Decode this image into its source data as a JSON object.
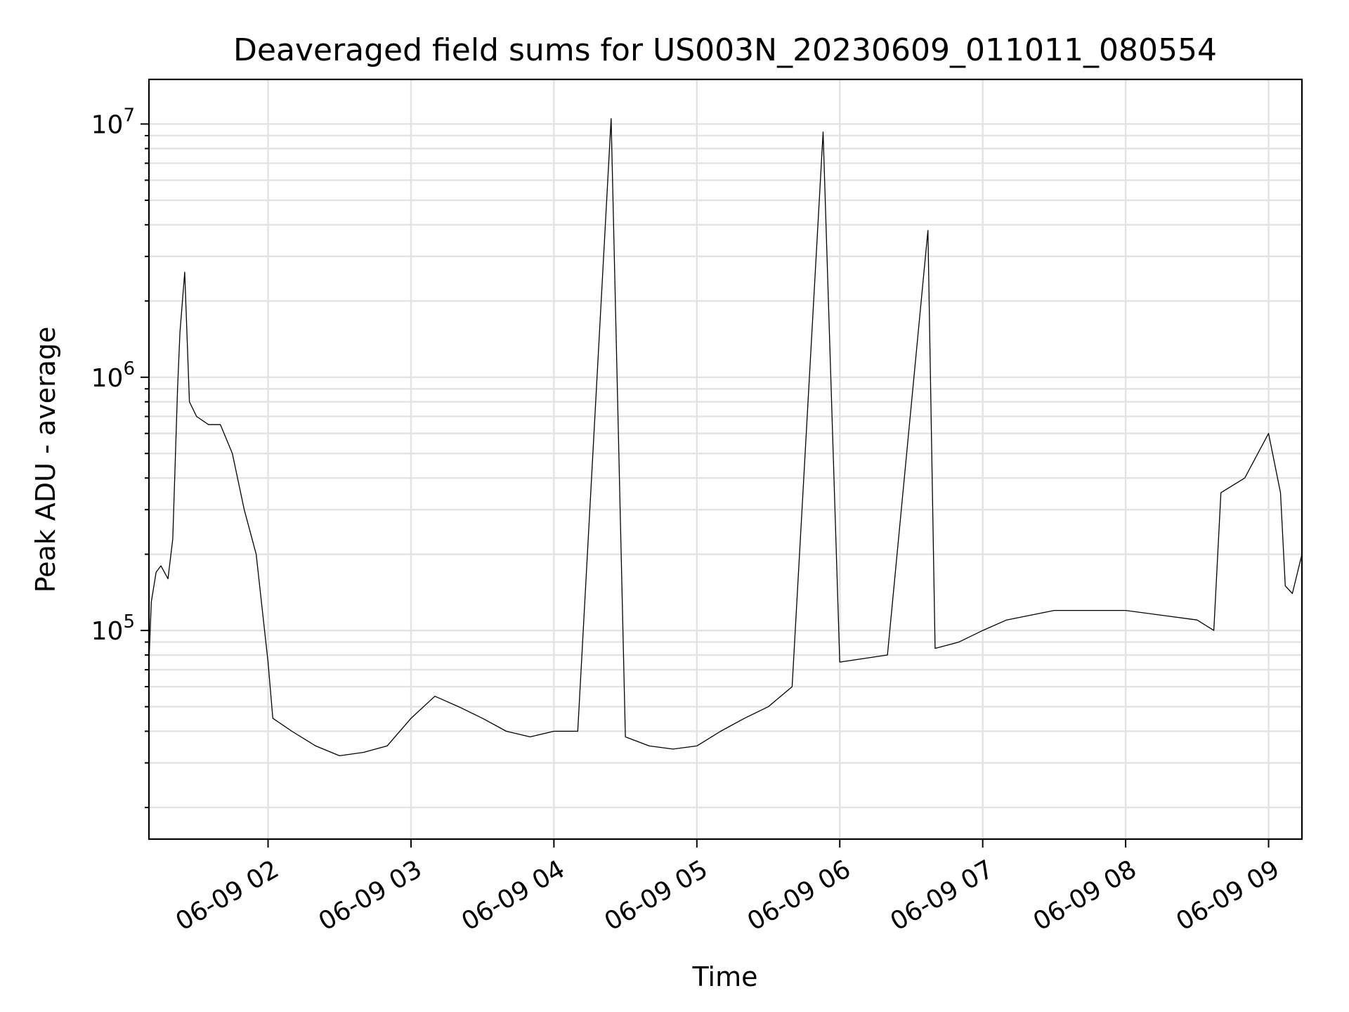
{
  "chart_data": {
    "type": "line",
    "title": "Deaveraged field sums for US003N_20230609_011011_080554",
    "xlabel": "Time",
    "ylabel": "Peak ADU - average",
    "x_axis": {
      "kind": "datetime",
      "range": [
        "2023-06-09 01:10",
        "2023-06-09 09:14"
      ],
      "ticks": [
        "2023-06-09 02:00",
        "2023-06-09 03:00",
        "2023-06-09 04:00",
        "2023-06-09 05:00",
        "2023-06-09 06:00",
        "2023-06-09 07:00",
        "2023-06-09 08:00",
        "2023-06-09 09:00"
      ],
      "tick_labels": [
        "06-09 02",
        "06-09 03",
        "06-09 04",
        "06-09 05",
        "06-09 06",
        "06-09 07",
        "06-09 08",
        "06-09 09"
      ],
      "tick_label_rotation_deg": 30
    },
    "y_axis": {
      "scale": "log",
      "ylim": [
        15000,
        15000000
      ],
      "ticks": [
        100000,
        1000000,
        10000000
      ],
      "tick_labels": [
        {
          "base": "10",
          "exp": "5"
        },
        {
          "base": "10",
          "exp": "6"
        },
        {
          "base": "10",
          "exp": "7"
        }
      ]
    },
    "grid": "major and minor",
    "series": [
      {
        "color": "#000000",
        "points": [
          [
            "2023-06-09 01:10",
            75000
          ],
          [
            "2023-06-09 01:11",
            130000
          ],
          [
            "2023-06-09 01:13",
            170000
          ],
          [
            "2023-06-09 01:15",
            180000
          ],
          [
            "2023-06-09 01:18",
            160000
          ],
          [
            "2023-06-09 01:20",
            230000
          ],
          [
            "2023-06-09 01:22",
            900000
          ],
          [
            "2023-06-09 01:23",
            1500000
          ],
          [
            "2023-06-09 01:25",
            2600000
          ],
          [
            "2023-06-09 01:27",
            800000
          ],
          [
            "2023-06-09 01:30",
            700000
          ],
          [
            "2023-06-09 01:35",
            650000
          ],
          [
            "2023-06-09 01:40",
            650000
          ],
          [
            "2023-06-09 01:45",
            500000
          ],
          [
            "2023-06-09 01:50",
            300000
          ],
          [
            "2023-06-09 01:55",
            200000
          ],
          [
            "2023-06-09 02:00",
            75000
          ],
          [
            "2023-06-09 02:02",
            45000
          ],
          [
            "2023-06-09 02:10",
            40000
          ],
          [
            "2023-06-09 02:20",
            35000
          ],
          [
            "2023-06-09 02:30",
            32000
          ],
          [
            "2023-06-09 02:40",
            33000
          ],
          [
            "2023-06-09 02:50",
            35000
          ],
          [
            "2023-06-09 03:00",
            45000
          ],
          [
            "2023-06-09 03:10",
            55000
          ],
          [
            "2023-06-09 03:20",
            50000
          ],
          [
            "2023-06-09 03:30",
            45000
          ],
          [
            "2023-06-09 03:40",
            40000
          ],
          [
            "2023-06-09 03:50",
            38000
          ],
          [
            "2023-06-09 04:00",
            40000
          ],
          [
            "2023-06-09 04:10",
            40000
          ],
          [
            "2023-06-09 04:24",
            10500000
          ],
          [
            "2023-06-09 04:30",
            38000
          ],
          [
            "2023-06-09 04:40",
            35000
          ],
          [
            "2023-06-09 04:50",
            34000
          ],
          [
            "2023-06-09 05:00",
            35000
          ],
          [
            "2023-06-09 05:10",
            40000
          ],
          [
            "2023-06-09 05:20",
            45000
          ],
          [
            "2023-06-09 05:30",
            50000
          ],
          [
            "2023-06-09 05:40",
            60000
          ],
          [
            "2023-06-09 05:53",
            9300000
          ],
          [
            "2023-06-09 06:00",
            75000
          ],
          [
            "2023-06-09 06:20",
            80000
          ],
          [
            "2023-06-09 06:37",
            3800000
          ],
          [
            "2023-06-09 06:40",
            85000
          ],
          [
            "2023-06-09 06:50",
            90000
          ],
          [
            "2023-06-09 07:00",
            100000
          ],
          [
            "2023-06-09 07:10",
            110000
          ],
          [
            "2023-06-09 07:30",
            120000
          ],
          [
            "2023-06-09 08:00",
            120000
          ],
          [
            "2023-06-09 08:30",
            110000
          ],
          [
            "2023-06-09 08:37",
            100000
          ],
          [
            "2023-06-09 08:40",
            350000
          ],
          [
            "2023-06-09 08:50",
            400000
          ],
          [
            "2023-06-09 09:00",
            600000
          ],
          [
            "2023-06-09 09:05",
            350000
          ],
          [
            "2023-06-09 09:07",
            150000
          ],
          [
            "2023-06-09 09:10",
            140000
          ],
          [
            "2023-06-09 09:14",
            200000
          ]
        ]
      }
    ]
  }
}
